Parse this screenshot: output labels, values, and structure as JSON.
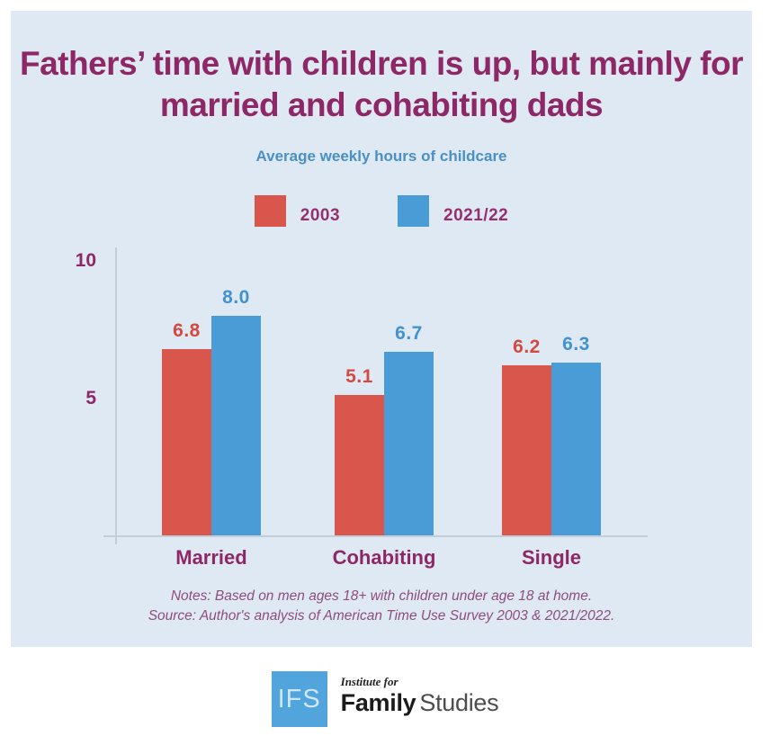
{
  "header": {
    "title": "Fathers’ time with children is up, but mainly for married and cohabiting dads",
    "subtitle": "Average weekly hours of childcare"
  },
  "chart_data": {
    "type": "bar",
    "title": "Average weekly hours of childcare",
    "categories": [
      "Married",
      "Cohabiting",
      "Single"
    ],
    "series": [
      {
        "name": "2003",
        "color": "#d8564b",
        "label_color": "#d4493f",
        "values": [
          6.8,
          5.1,
          6.2
        ]
      },
      {
        "name": "2021/22",
        "color": "#4a9cd6",
        "label_color": "#4292cf",
        "values": [
          8.0,
          6.7,
          6.3
        ]
      }
    ],
    "yticks": [
      5,
      10
    ],
    "ylim": [
      0,
      10.8
    ],
    "grid": false,
    "legend_position": "top",
    "value_labels_shown": true
  },
  "footer": {
    "notes": "Notes: Based on men ages 18+ with children under age 18 at home.",
    "source": "Source: Author's analysis of American Time Use Survey 2003 & 2021/2022."
  },
  "logo": {
    "abbr": "IFS",
    "tagline": "Institute for",
    "name_bold": "Family",
    "name_light": "Studies"
  },
  "colors": {
    "card_bg": "#dfe9f4",
    "title_color": "#8e2766",
    "subtitle_color": "#4a90c4",
    "legend_label_color": "#943070",
    "axis_color": "#c6cdd8",
    "notes_color": "#8d4d7d",
    "logo_blue": "#51a5dc"
  }
}
